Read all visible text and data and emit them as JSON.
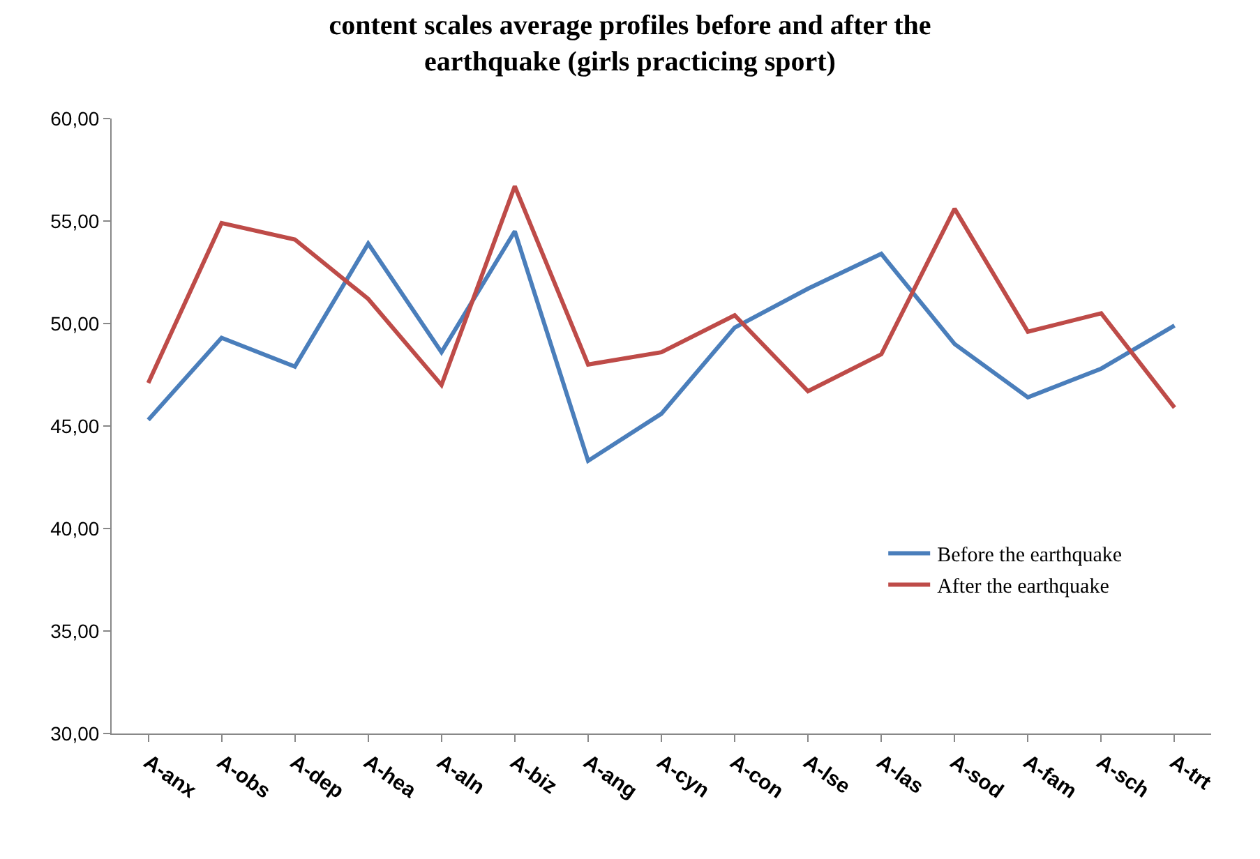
{
  "chart_data": {
    "type": "line",
    "title": "content scales average profiles before and after the earthquake (girls practicing sport)",
    "categories": [
      "A-anx",
      "A-obs",
      "A-dep",
      "A-hea",
      "A-aln",
      "A-biz",
      "A-ang",
      "A-cyn",
      "A-con",
      "A-lse",
      "A-las",
      "A-sod",
      "A-fam",
      "A-sch",
      "A-trt"
    ],
    "series": [
      {
        "name": "Before the earthquake",
        "color": "#4a7ebb",
        "values": [
          45.3,
          49.3,
          47.9,
          53.9,
          48.6,
          54.5,
          43.3,
          45.6,
          49.8,
          51.7,
          53.4,
          49.0,
          46.4,
          47.8,
          49.9
        ]
      },
      {
        "name": "After the earthquake",
        "color": "#be4b48",
        "values": [
          47.1,
          54.9,
          54.1,
          51.2,
          47.0,
          56.7,
          48.0,
          48.6,
          50.4,
          46.7,
          48.5,
          55.6,
          49.6,
          50.5,
          45.9
        ]
      }
    ],
    "ylim": [
      30,
      60
    ],
    "yticks": [
      {
        "value": 30,
        "label": "30,00"
      },
      {
        "value": 35,
        "label": "35,00"
      },
      {
        "value": 40,
        "label": "40,00"
      },
      {
        "value": 45,
        "label": "45,00"
      },
      {
        "value": 50,
        "label": "50,00"
      },
      {
        "value": 55,
        "label": "55,00"
      },
      {
        "value": 60,
        "label": "60,00"
      }
    ],
    "legend": "right",
    "marker": "none",
    "line_style": "solid"
  }
}
